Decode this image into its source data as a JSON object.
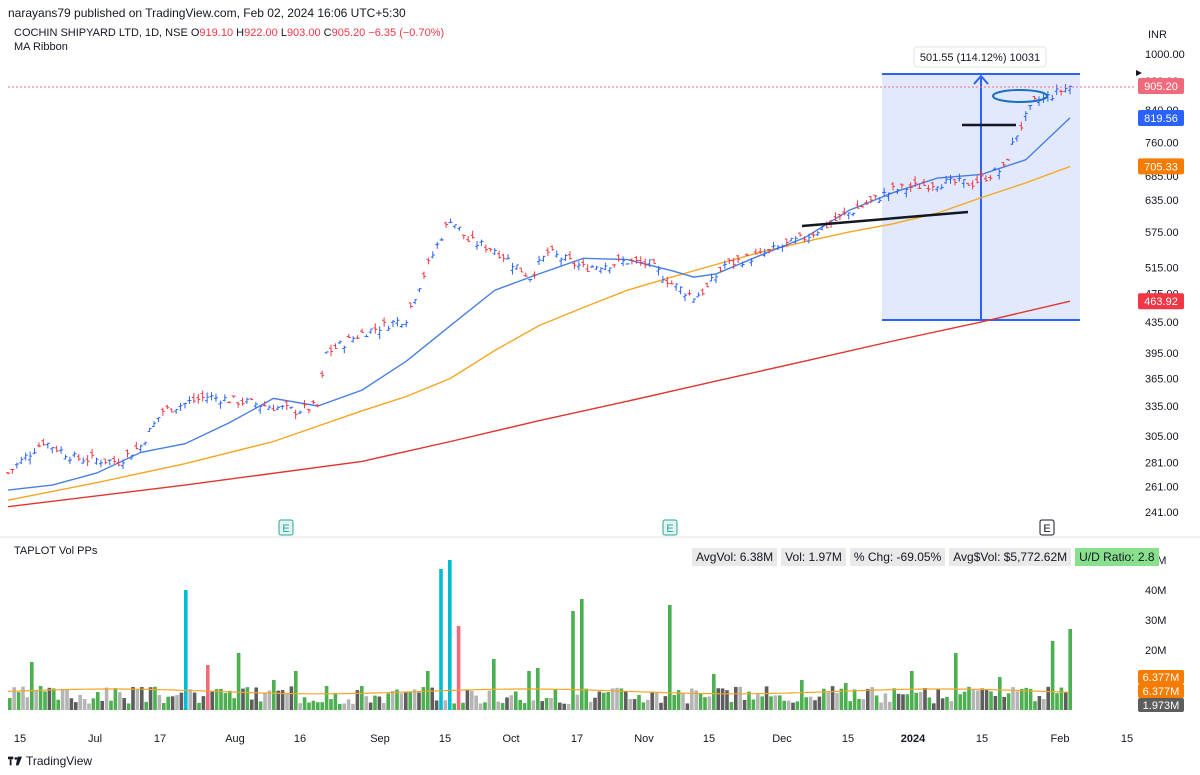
{
  "header": {
    "publisher": "narayans79 published on TradingView.com, Feb 02, 2024 16:06 UTC+5:30"
  },
  "legend": {
    "symbol": "COCHIN SHIPYARD LTD, 1D, NSE",
    "open_label": "O",
    "open": "919.10",
    "high_label": "H",
    "high": "922.00",
    "low_label": "L",
    "low": "903.00",
    "close_label": "C",
    "close": "905.20",
    "change": "−6.35 (−0.70%)",
    "indicator": "MA Ribbon"
  },
  "currency": "INR",
  "measure_label": "501.55 (114.12%) 10031",
  "volume_panel": {
    "title": "TAPLOT Vol PPs",
    "stats": [
      {
        "text": "AvgVol: 6.38M"
      },
      {
        "text": "Vol: 1.97M"
      },
      {
        "text": "% Chg: -69.05%"
      },
      {
        "text": "Avg$Vol: $5,772.62M"
      },
      {
        "text": "U/D Ratio: 2.8"
      }
    ]
  },
  "footer": {
    "brand": "TradingView"
  },
  "colors": {
    "up": "#2962ff",
    "down": "#f23645",
    "ma_fast": "#4a7fe0",
    "ma_mid": "#f5a623",
    "ma_slow": "#e0342f",
    "vol_green": "#4caf50",
    "vol_cyan": "#00bcd4",
    "vol_red": "#ef6b7b",
    "vol_gray": "#b5b5b5",
    "vol_dark": "#5d5d5d",
    "vol_blue": "#3d6ff0",
    "box": "#dbe4fb"
  },
  "chart_data": {
    "type": "candlestick",
    "price_scale": "log",
    "price_ticks": [
      "1000.00",
      "920.00",
      "840.00",
      "760.00",
      "685.00",
      "635.00",
      "575.00",
      "515.00",
      "475.00",
      "435.00",
      "395.00",
      "365.00",
      "335.00",
      "305.00",
      "281.00",
      "261.00",
      "241.00"
    ],
    "price_labels": [
      {
        "value": 905.2,
        "text": "905.20",
        "color": "#ef6b7b"
      },
      {
        "value": 819.56,
        "text": "819.56",
        "color": "#2962ff"
      },
      {
        "value": 705.33,
        "text": "705.33",
        "color": "#f57c00"
      },
      {
        "value": 463.92,
        "text": "463.92",
        "color": "#f23645"
      }
    ],
    "x_labels": [
      "15",
      "Jul",
      "17",
      "Aug",
      "16",
      "Sep",
      "15",
      "Oct",
      "17",
      "Nov",
      "15",
      "Dec",
      "15",
      "2024",
      "15",
      "Feb",
      "15"
    ],
    "earnings_markers": [
      "E",
      "E",
      "E"
    ],
    "ma_fast": [
      [
        0,
        258
      ],
      [
        10,
        262
      ],
      [
        20,
        272
      ],
      [
        30,
        290
      ],
      [
        40,
        298
      ],
      [
        50,
        318
      ],
      [
        60,
        343
      ],
      [
        70,
        335
      ],
      [
        80,
        352
      ],
      [
        90,
        385
      ],
      [
        100,
        430
      ],
      [
        110,
        480
      ],
      [
        120,
        505
      ],
      [
        130,
        530
      ],
      [
        140,
        528
      ],
      [
        150,
        510
      ],
      [
        155,
        500
      ],
      [
        160,
        505
      ],
      [
        170,
        535
      ],
      [
        180,
        565
      ],
      [
        190,
        615
      ],
      [
        200,
        650
      ],
      [
        210,
        680
      ],
      [
        220,
        688
      ],
      [
        230,
        720
      ],
      [
        240,
        820
      ]
    ],
    "ma_mid": [
      [
        0,
        250
      ],
      [
        20,
        264
      ],
      [
        40,
        280
      ],
      [
        60,
        300
      ],
      [
        80,
        330
      ],
      [
        90,
        345
      ],
      [
        100,
        365
      ],
      [
        110,
        398
      ],
      [
        120,
        430
      ],
      [
        130,
        455
      ],
      [
        140,
        480
      ],
      [
        150,
        500
      ],
      [
        160,
        520
      ],
      [
        170,
        540
      ],
      [
        180,
        558
      ],
      [
        190,
        575
      ],
      [
        200,
        590
      ],
      [
        210,
        610
      ],
      [
        220,
        640
      ],
      [
        230,
        670
      ],
      [
        240,
        705
      ]
    ],
    "ma_slow": [
      [
        0,
        245
      ],
      [
        40,
        262
      ],
      [
        80,
        282
      ],
      [
        100,
        300
      ],
      [
        120,
        320
      ],
      [
        140,
        340
      ],
      [
        160,
        362
      ],
      [
        180,
        385
      ],
      [
        200,
        410
      ],
      [
        220,
        435
      ],
      [
        240,
        464
      ]
    ],
    "volume_ticks": [
      "50M",
      "40M",
      "30M",
      "20M"
    ],
    "volume_labels": [
      {
        "text": "6.377M",
        "color": "#f57c00"
      },
      {
        "text": "6.377M",
        "color": "#f57c00"
      },
      {
        "text": "1.973M",
        "color": "#5d5d5d"
      }
    ]
  }
}
